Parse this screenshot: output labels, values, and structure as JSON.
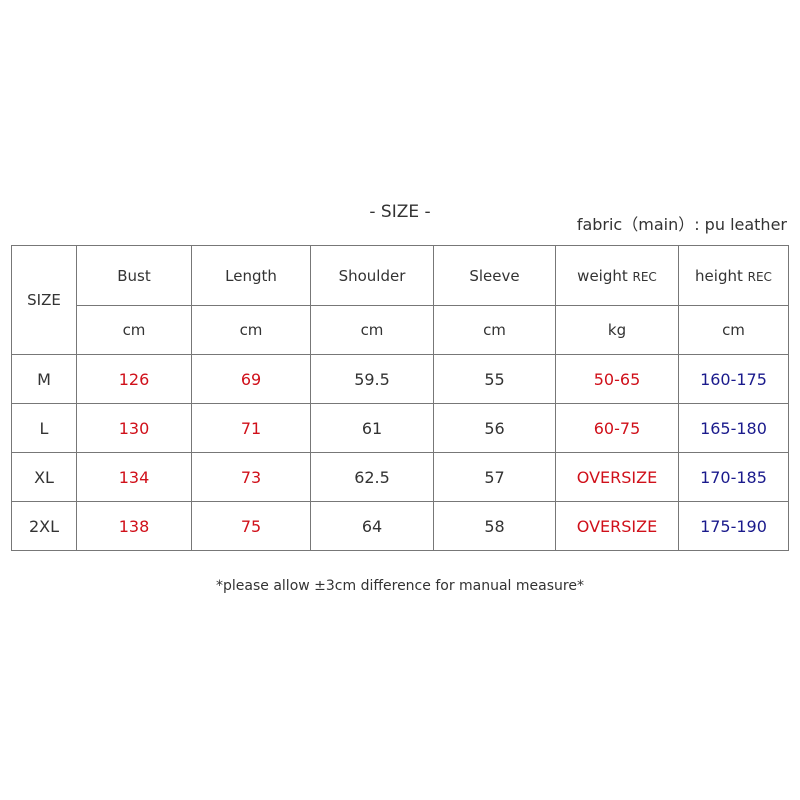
{
  "title": "- SIZE -",
  "fabric": "fabric（main）: pu leather",
  "headers": {
    "size": "SIZE",
    "cols": [
      {
        "label": "Bust",
        "suffix": "",
        "unit": "cm"
      },
      {
        "label": "Length",
        "suffix": "",
        "unit": "cm"
      },
      {
        "label": "Shoulder",
        "suffix": "",
        "unit": "cm"
      },
      {
        "label": "Sleeve",
        "suffix": "",
        "unit": "cm"
      },
      {
        "label": "weight ",
        "suffix": "REC",
        "unit": "kg"
      },
      {
        "label": "height ",
        "suffix": "REC",
        "unit": "cm"
      }
    ]
  },
  "rows": [
    [
      "M",
      "126",
      "69",
      "59.5",
      "55",
      "50-65",
      "160-175"
    ],
    [
      "L",
      "130",
      "71",
      "61",
      "56",
      "60-75",
      "165-180"
    ],
    [
      "XL",
      "134",
      "73",
      "62.5",
      "57",
      "OVERSIZE",
      "170-185"
    ],
    [
      "2XL",
      "138",
      "75",
      "64",
      "58",
      "OVERSIZE",
      "175-190"
    ]
  ],
  "colors": {
    "red": "#d0101a",
    "blue": "#1a1a8c",
    "text": "#333333"
  },
  "note": "*please allow ±3cm difference for manual measure*"
}
